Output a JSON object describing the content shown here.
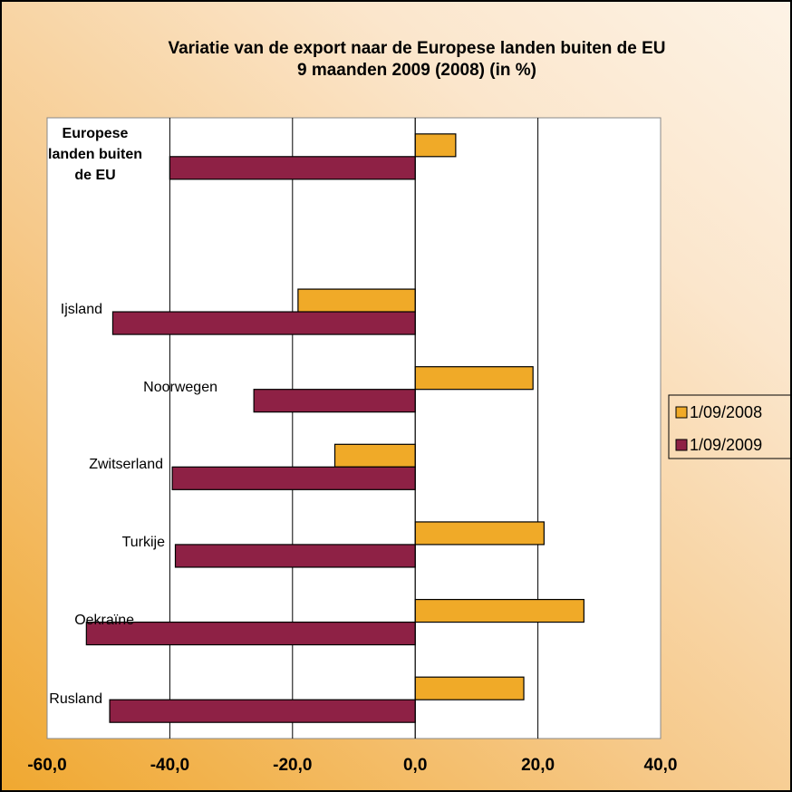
{
  "chart_data": {
    "type": "hbar",
    "title": "Variatie van de export naar de Europese landen buiten de EU",
    "subtitle": "9 maanden 2009 (2008) (in %)",
    "categories": [
      "Europese landen buiten de EU",
      null,
      "Ijsland",
      "Noorwegen",
      "Zwitserland",
      "Turkije",
      "Oekraïne",
      "Rusland"
    ],
    "series": [
      {
        "name": "1/09/2008",
        "color": "#f0aa28",
        "values": [
          6.6,
          null,
          -19.1,
          19.2,
          -13.1,
          21.0,
          27.5,
          17.7
        ]
      },
      {
        "name": "1/09/2009",
        "color": "#8e2145",
        "values": [
          -40.0,
          null,
          -49.3,
          -26.3,
          -39.6,
          -39.1,
          -53.6,
          -49.8
        ]
      }
    ],
    "xlim": [
      -60,
      40
    ],
    "xticks": [
      {
        "value": -60,
        "label": "-60,0"
      },
      {
        "value": -40,
        "label": "-40,0"
      },
      {
        "value": -20,
        "label": "-20,0"
      },
      {
        "value": 0,
        "label": "0,0"
      },
      {
        "value": 20,
        "label": "20,0"
      },
      {
        "value": 40,
        "label": "40,0"
      }
    ],
    "grid": true,
    "legend": "right"
  }
}
